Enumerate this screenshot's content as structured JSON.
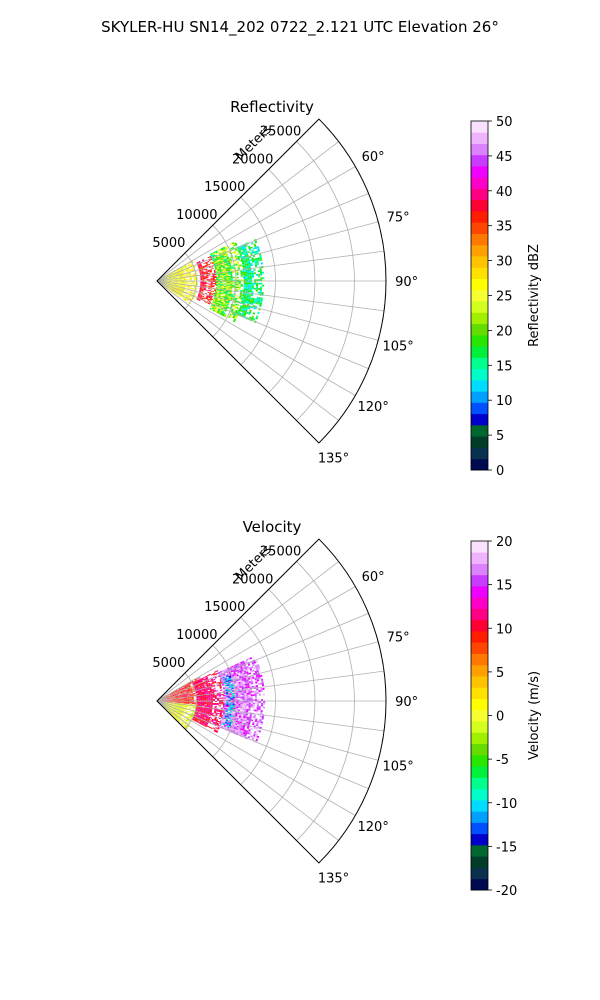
{
  "figure_title": "SKYLER-HU  SN14_202  0722_2.121 UTC Elevation 26°",
  "chart_data": [
    {
      "type": "heatmap",
      "projection": "polar-sector",
      "title": "Reflectivity",
      "radial_label": "Meters",
      "radial_ticks": [
        5000,
        10000,
        15000,
        20000,
        25000
      ],
      "range_max_m": 29000,
      "azimuth_range_deg": [
        45,
        135
      ],
      "azimuth_ticks_deg": [
        60,
        75,
        90,
        105,
        120,
        135
      ],
      "grid": true,
      "colorbar": {
        "label": "Reflectivity dBZ",
        "min": 0,
        "max": 50,
        "ticks": [
          0,
          5,
          10,
          15,
          20,
          25,
          30,
          35,
          40,
          45,
          50
        ],
        "colors": [
          "#000a50",
          "#0a3050",
          "#003c28",
          "#00682e",
          "#0000c8",
          "#0050ff",
          "#00a0ff",
          "#00dcff",
          "#00ffc8",
          "#00ff8c",
          "#00f03c",
          "#28e600",
          "#64dc00",
          "#a0f000",
          "#d2ff1e",
          "#f5ff32",
          "#ffff00",
          "#ffe100",
          "#ffc300",
          "#ffa000",
          "#ff7800",
          "#ff4600",
          "#ff1e00",
          "#ff0032",
          "#ff0082",
          "#ff00c8",
          "#f000ff",
          "#c83cff",
          "#dc82ff",
          "#f0b4ff",
          "#fae1ff"
        ]
      },
      "echo_regions": [
        {
          "description": "near-range echo",
          "range_m": [
            0,
            5000
          ],
          "azimuth_deg": [
            60,
            125
          ],
          "value_range": [
            22,
            30
          ]
        },
        {
          "description": "high reflectivity arc",
          "range_m": [
            5500,
            7500
          ],
          "azimuth_deg": [
            65,
            115
          ],
          "value_range": [
            33,
            40
          ]
        },
        {
          "description": "mid-range echo",
          "range_m": [
            7500,
            11000
          ],
          "azimuth_deg": [
            63,
            118
          ],
          "value_range": [
            15,
            26
          ]
        },
        {
          "description": "outer edge",
          "range_m": [
            11000,
            13500
          ],
          "azimuth_deg": [
            67,
            113
          ],
          "value_range": [
            12,
            20
          ]
        }
      ]
    },
    {
      "type": "heatmap",
      "projection": "polar-sector",
      "title": "Velocity",
      "radial_label": "Meters",
      "radial_ticks": [
        5000,
        10000,
        15000,
        20000,
        25000
      ],
      "range_max_m": 29000,
      "azimuth_range_deg": [
        45,
        135
      ],
      "azimuth_ticks_deg": [
        60,
        75,
        90,
        105,
        120,
        135
      ],
      "grid": true,
      "colorbar": {
        "label": "Velocity (m/s)",
        "min": -20,
        "max": 20,
        "ticks": [
          -20,
          -15,
          -10,
          -5,
          0,
          5,
          10,
          15,
          20
        ],
        "colors": [
          "#000a50",
          "#0a3050",
          "#003c28",
          "#00682e",
          "#0000c8",
          "#0050ff",
          "#00a0ff",
          "#00dcff",
          "#00ffc8",
          "#00ff8c",
          "#00f03c",
          "#28e600",
          "#64dc00",
          "#a0f000",
          "#d2ff1e",
          "#f5ff32",
          "#ffff00",
          "#ffe100",
          "#ffc300",
          "#ffa000",
          "#ff7800",
          "#ff4600",
          "#ff1e00",
          "#ff0032",
          "#ff0082",
          "#ff00c8",
          "#f000ff",
          "#c83cff",
          "#dc82ff",
          "#f0b4ff",
          "#fae1ff"
        ]
      },
      "echo_regions": [
        {
          "description": "near-range lower-left",
          "range_m": [
            0,
            5000
          ],
          "azimuth_deg": [
            95,
            135
          ],
          "value_range": [
            -3,
            3
          ]
        },
        {
          "description": "near-range upper",
          "range_m": [
            0,
            6000
          ],
          "azimuth_deg": [
            60,
            95
          ],
          "value_range": [
            6,
            12
          ]
        },
        {
          "description": "inner band",
          "range_m": [
            5000,
            8500
          ],
          "azimuth_deg": [
            63,
            118
          ],
          "value_range": [
            9,
            13
          ]
        },
        {
          "description": "outer band",
          "range_m": [
            8500,
            13500
          ],
          "azimuth_deg": [
            65,
            113
          ],
          "value_range": [
            14,
            19
          ]
        },
        {
          "description": "aliased streak",
          "range_m": [
            8800,
            9800
          ],
          "azimuth_deg": [
            70,
            110
          ],
          "value_range": [
            -14,
            -8
          ]
        }
      ]
    }
  ]
}
